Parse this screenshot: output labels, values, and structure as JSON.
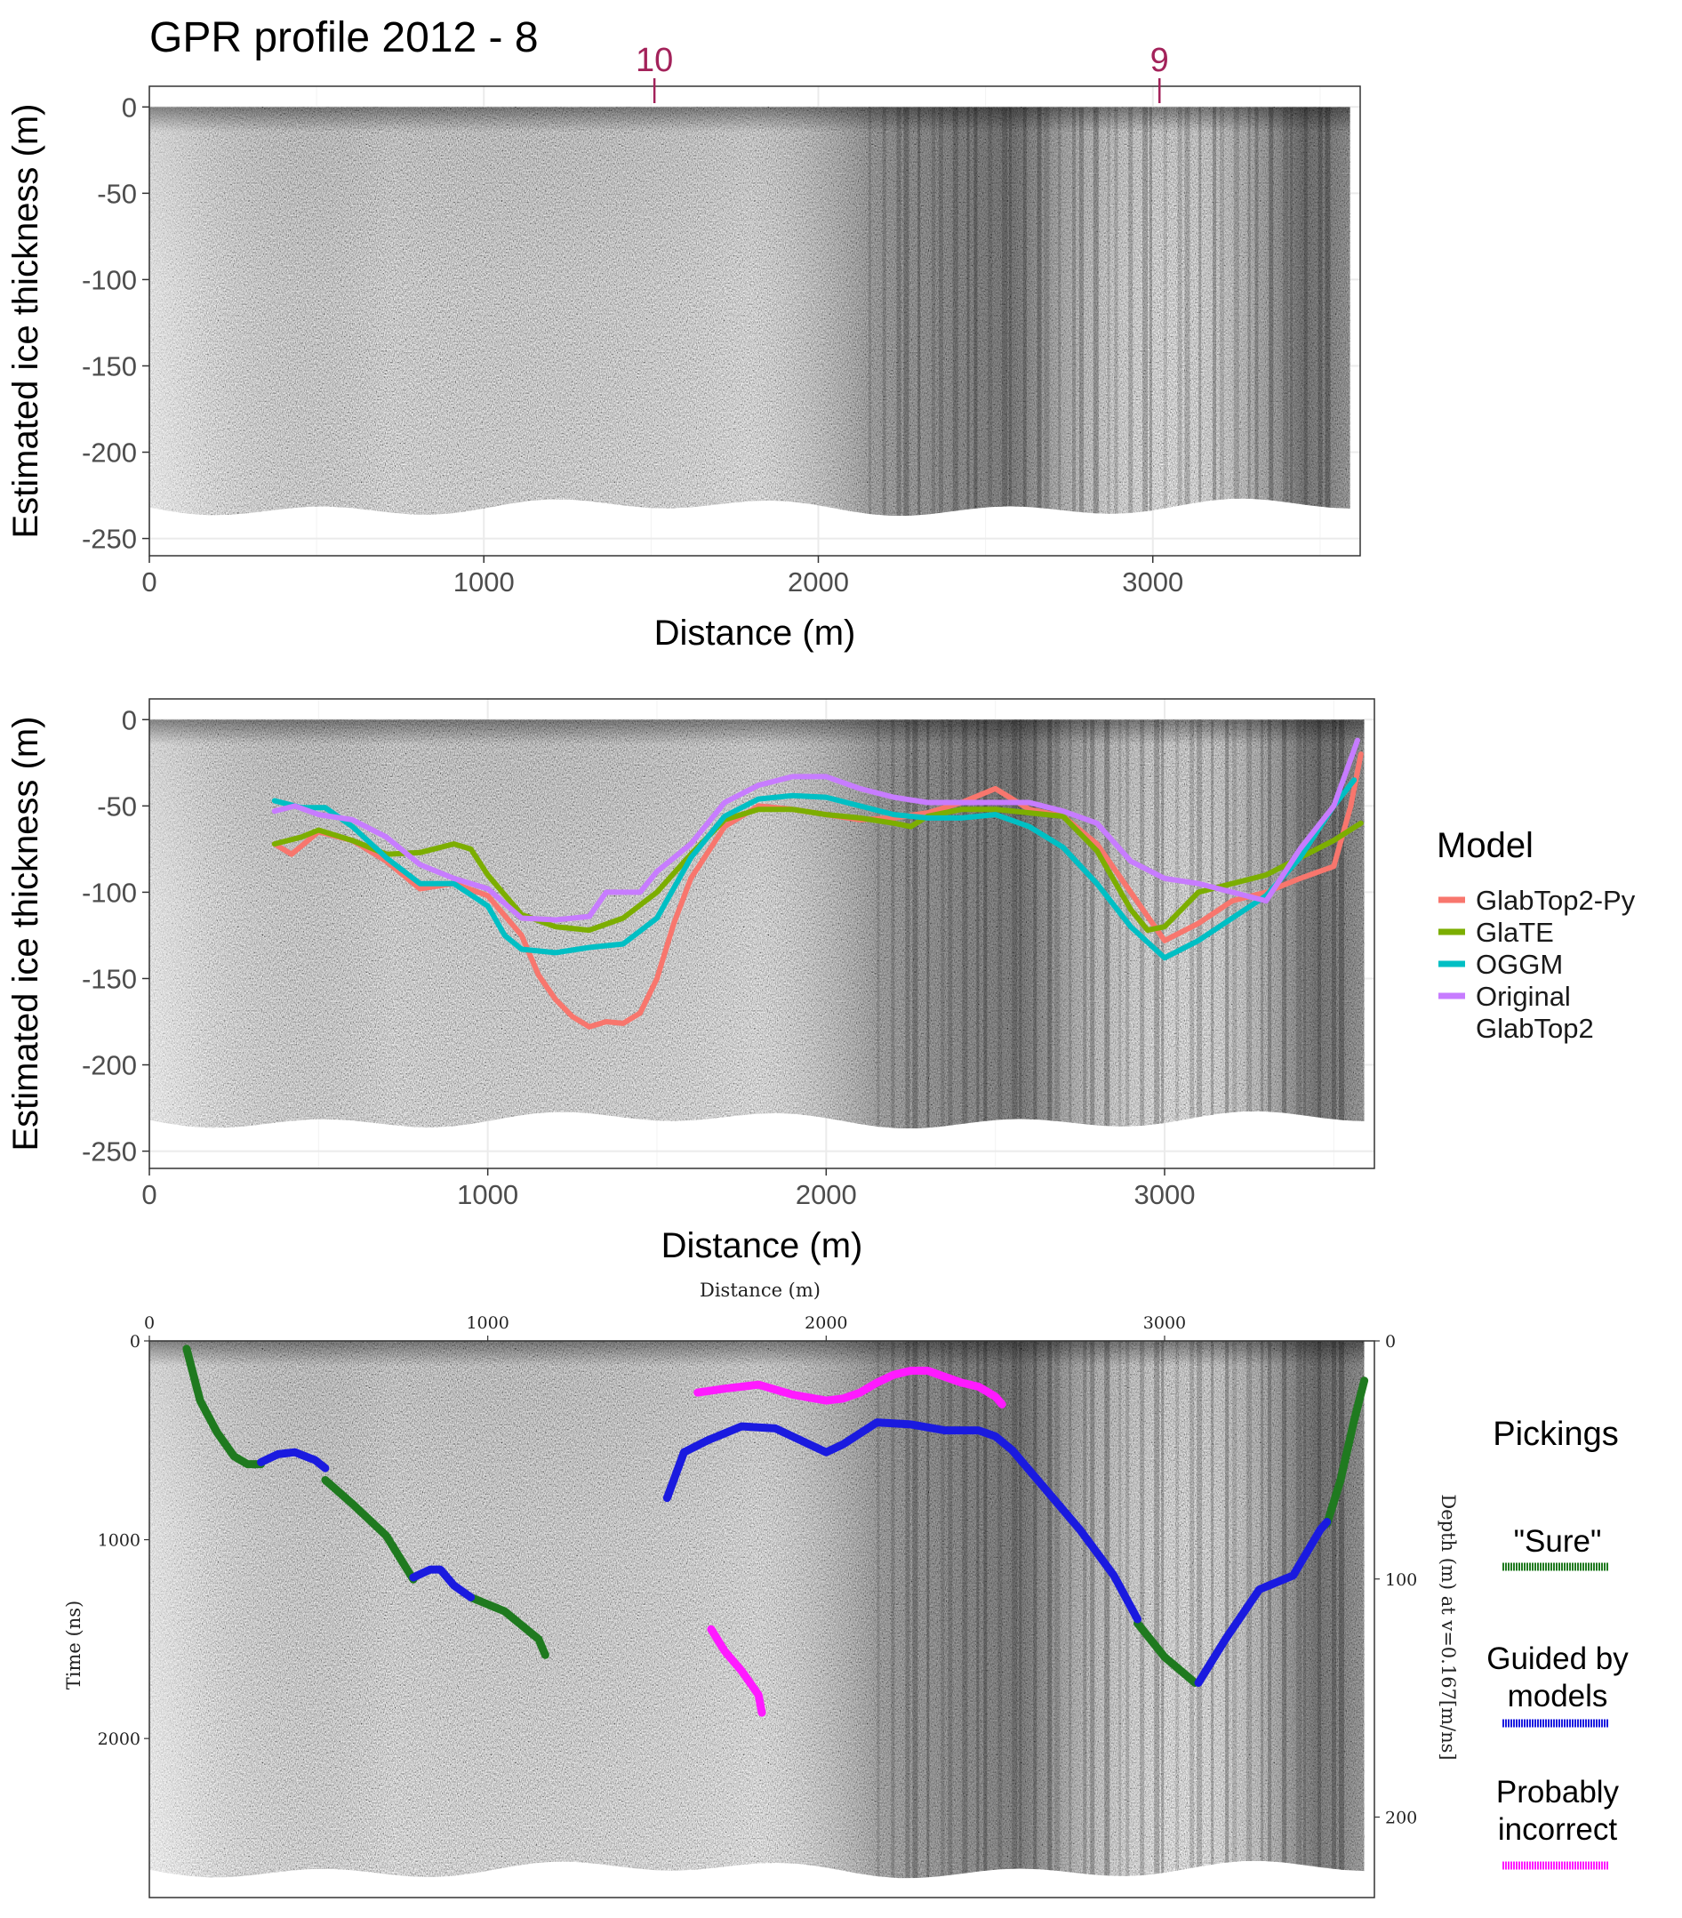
{
  "figure_title": "GPR profile 2012 - 8",
  "colors": {
    "GlabTop2-Py": "#f8766d",
    "GlaTE": "#7cae00",
    "OGGM": "#00bfc4",
    "Original GlabTop2": "#c77cff",
    "sure": "#1f7a1f",
    "guided": "#1a1adf",
    "incorrect": "#ff1aff",
    "marker": "#a3225a"
  },
  "chart_data": [
    {
      "type": "heatmap",
      "title": "GPR profile 2012 - 8",
      "xlabel": "Distance (m)",
      "ylabel": "Estimated ice thickness (m)",
      "xlim": [
        0,
        3620
      ],
      "ylim": [
        -260,
        12
      ],
      "xticks": [
        0,
        1000,
        2000,
        3000
      ],
      "xtick_labels": [
        "0",
        "1000",
        "2000",
        "3000"
      ],
      "yticks": [
        0,
        -50,
        -100,
        -150,
        -200,
        -250
      ],
      "ytick_labels": [
        "0",
        "-50",
        "-100",
        "-150",
        "-200",
        "-250"
      ],
      "grid": true,
      "annotations": [
        {
          "text": "10",
          "x": 1510
        },
        {
          "text": "9",
          "x": 3020
        }
      ]
    },
    {
      "type": "line",
      "xlabel": "Distance (m)",
      "ylabel": "Estimated ice thickness (m)",
      "xlim": [
        0,
        3620
      ],
      "ylim": [
        -260,
        12
      ],
      "xticks": [
        0,
        1000,
        2000,
        3000
      ],
      "xtick_labels": [
        "0",
        "1000",
        "2000",
        "3000"
      ],
      "yticks": [
        0,
        -50,
        -100,
        -150,
        -200,
        -250
      ],
      "ytick_labels": [
        "0",
        "-50",
        "-100",
        "-150",
        "-200",
        "-250"
      ],
      "grid": true,
      "legend_title": "Model",
      "legend_position": "right",
      "series": [
        {
          "name": "GlabTop2-Py",
          "color_key": "GlabTop2-Py",
          "x": [
            370,
            420,
            500,
            600,
            700,
            800,
            900,
            1000,
            1100,
            1150,
            1200,
            1250,
            1300,
            1350,
            1400,
            1450,
            1500,
            1550,
            1600,
            1700,
            1800,
            1900,
            2000,
            2100,
            2200,
            2300,
            2400,
            2500,
            2550,
            2600,
            2700,
            2800,
            2900,
            3000,
            3100,
            3200,
            3300,
            3400,
            3500,
            3550,
            3580
          ],
          "y": [
            -72,
            -78,
            -65,
            -70,
            -82,
            -98,
            -95,
            -102,
            -125,
            -148,
            -162,
            -172,
            -178,
            -175,
            -176,
            -170,
            -150,
            -118,
            -92,
            -62,
            -50,
            -52,
            -55,
            -58,
            -57,
            -54,
            -48,
            -40,
            -46,
            -52,
            -56,
            -72,
            -100,
            -128,
            -118,
            -105,
            -100,
            -92,
            -85,
            -50,
            -20
          ]
        },
        {
          "name": "GlaTE",
          "color_key": "GlaTE",
          "x": [
            370,
            450,
            500,
            600,
            700,
            800,
            900,
            950,
            1000,
            1100,
            1200,
            1300,
            1400,
            1500,
            1600,
            1700,
            1800,
            1900,
            2000,
            2100,
            2200,
            2250,
            2300,
            2400,
            2500,
            2600,
            2700,
            2800,
            2900,
            2950,
            3000,
            3100,
            3200,
            3300,
            3400,
            3500,
            3580
          ],
          "y": [
            -72,
            -68,
            -64,
            -70,
            -78,
            -77,
            -72,
            -75,
            -90,
            -113,
            -120,
            -122,
            -115,
            -100,
            -78,
            -58,
            -52,
            -52,
            -55,
            -57,
            -60,
            -62,
            -56,
            -52,
            -52,
            -54,
            -56,
            -76,
            -110,
            -122,
            -120,
            -100,
            -95,
            -90,
            -80,
            -70,
            -60
          ]
        },
        {
          "name": "OGGM",
          "color_key": "OGGM",
          "x": [
            370,
            450,
            520,
            600,
            700,
            800,
            900,
            1000,
            1050,
            1100,
            1200,
            1300,
            1400,
            1500,
            1600,
            1700,
            1800,
            1900,
            2000,
            2100,
            2200,
            2300,
            2400,
            2500,
            2600,
            2700,
            2800,
            2900,
            3000,
            3100,
            3200,
            3300,
            3400,
            3500,
            3560
          ],
          "y": [
            -47,
            -51,
            -51,
            -62,
            -80,
            -95,
            -95,
            -108,
            -125,
            -133,
            -135,
            -132,
            -130,
            -115,
            -80,
            -56,
            -46,
            -44,
            -45,
            -50,
            -55,
            -57,
            -57,
            -55,
            -62,
            -74,
            -95,
            -120,
            -138,
            -128,
            -115,
            -102,
            -80,
            -50,
            -35
          ]
        },
        {
          "name": "Original GlabTop2",
          "color_key": "Original GlabTop2",
          "x": [
            370,
            430,
            500,
            600,
            700,
            800,
            900,
            1000,
            1100,
            1200,
            1300,
            1350,
            1400,
            1450,
            1500,
            1600,
            1700,
            1800,
            1900,
            2000,
            2100,
            2200,
            2300,
            2400,
            2500,
            2600,
            2700,
            2800,
            2900,
            3000,
            3100,
            3200,
            3300,
            3400,
            3500,
            3570
          ],
          "y": [
            -53,
            -50,
            -55,
            -58,
            -68,
            -84,
            -92,
            -98,
            -115,
            -116,
            -114,
            -100,
            -100,
            -100,
            -88,
            -72,
            -48,
            -38,
            -33,
            -33,
            -40,
            -45,
            -48,
            -48,
            -48,
            -48,
            -53,
            -60,
            -82,
            -92,
            -95,
            -100,
            -105,
            -75,
            -50,
            -12
          ]
        }
      ]
    },
    {
      "type": "scatter",
      "xlabel": "Distance (m)",
      "ylabel": "Time (ns)",
      "y2label": "Depth (m) at v=0.167[m/ns]",
      "xlim": [
        0,
        3620
      ],
      "ylim": [
        2800,
        0
      ],
      "xticks": [
        0,
        1000,
        2000,
        3000
      ],
      "xtick_labels": [
        "0",
        "1000",
        "2000",
        "3000"
      ],
      "yticks": [
        0,
        1000,
        2000
      ],
      "ytick_labels": [
        "0",
        "1000",
        "2000"
      ],
      "y2ticks": [
        0,
        100,
        200
      ],
      "y2tick_labels": [
        "0",
        "100",
        "200"
      ],
      "legend_title": "Pickings",
      "legend_position": "right",
      "series": [
        {
          "name": "\"Sure\"",
          "color_key": "sure",
          "segments": [
            {
              "x": [
                110,
                150,
                200,
                250,
                290,
                330
              ],
              "y": [
                40,
                300,
                460,
                580,
                620,
                620
              ]
            },
            {
              "x": [
                520,
                600,
                700,
                780
              ],
              "y": [
                700,
                820,
                980,
                1200
              ]
            },
            {
              "x": [
                950,
                1050,
                1150,
                1170
              ],
              "y": [
                1290,
                1360,
                1500,
                1580
              ]
            },
            {
              "x": [
                2920,
                3000,
                3090
              ],
              "y": [
                1420,
                1590,
                1720
              ]
            },
            {
              "x": [
                3480,
                3520,
                3560,
                3590
              ],
              "y": [
                920,
                700,
                400,
                200
              ]
            }
          ]
        },
        {
          "name": "Guided by models",
          "color_key": "guided",
          "segments": [
            {
              "x": [
                330,
                380,
                430,
                490,
                520
              ],
              "y": [
                610,
                570,
                560,
                600,
                640
              ]
            },
            {
              "x": [
                780,
                830,
                860,
                900,
                950
              ],
              "y": [
                1190,
                1150,
                1150,
                1230,
                1290
              ]
            },
            {
              "x": [
                1530,
                1580,
                1650,
                1750,
                1850,
                1950,
                2000,
                2050,
                2150,
                2250,
                2350,
                2450,
                2500,
                2550
              ],
              "y": [
                790,
                560,
                500,
                430,
                440,
                520,
                560,
                520,
                410,
                420,
                450,
                450,
                480,
                550
              ]
            },
            {
              "x": [
                2550,
                2650,
                2750,
                2850,
                2920
              ],
              "y": [
                550,
                750,
                950,
                1180,
                1400
              ]
            },
            {
              "x": [
                3100,
                3180,
                3280,
                3380,
                3460,
                3480
              ],
              "y": [
                1720,
                1500,
                1250,
                1180,
                950,
                910
              ]
            }
          ]
        },
        {
          "name": "Probably\nincorrect",
          "color_key": "incorrect",
          "segments": [
            {
              "x": [
                1620,
                1700,
                1800,
                1900,
                2000,
                2050,
                2100,
                2150,
                2200,
                2250,
                2300,
                2400,
                2450,
                2500,
                2520
              ],
              "y": [
                260,
                240,
                220,
                270,
                300,
                290,
                260,
                210,
                170,
                150,
                150,
                210,
                230,
                280,
                320
              ]
            },
            {
              "x": [
                1660,
                1700,
                1750,
                1800,
                1810
              ],
              "y": [
                1450,
                1560,
                1660,
                1780,
                1870
              ]
            }
          ]
        }
      ]
    }
  ],
  "legend_model": {
    "title": "Model",
    "items": [
      {
        "label": "GlabTop2-Py",
        "color_key": "GlabTop2-Py"
      },
      {
        "label": "GlaTE",
        "color_key": "GlaTE"
      },
      {
        "label": "OGGM",
        "color_key": "OGGM"
      },
      {
        "label_lines": [
          "Original",
          "GlabTop2"
        ],
        "color_key": "Original GlabTop2"
      }
    ]
  },
  "legend_pickings": {
    "title": "Pickings",
    "items": [
      {
        "label_lines": [
          "\"Sure\""
        ],
        "color_key": "sure"
      },
      {
        "label_lines": [
          "Guided by",
          "models"
        ],
        "color_key": "guided"
      },
      {
        "label_lines": [
          "Probably",
          "incorrect"
        ],
        "color_key": "incorrect"
      }
    ]
  }
}
